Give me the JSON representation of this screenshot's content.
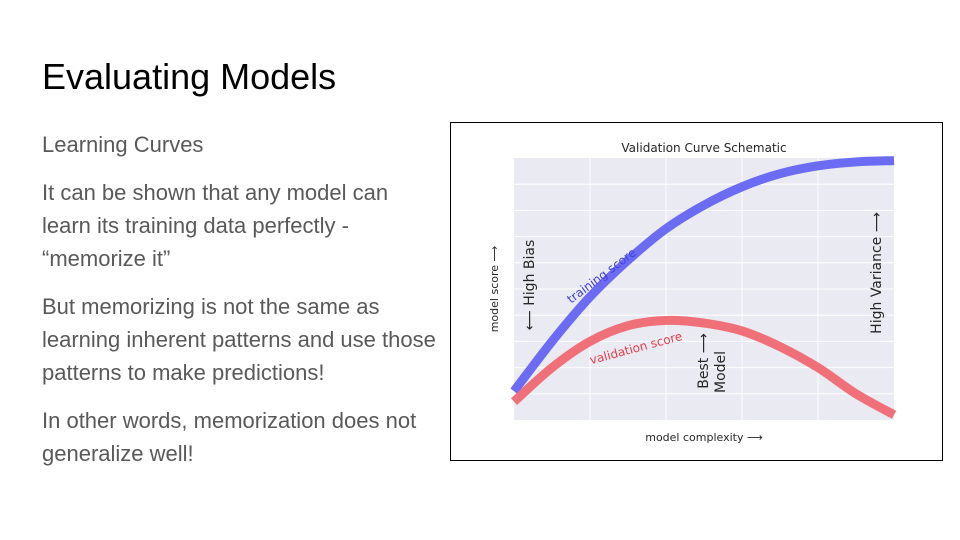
{
  "slide": {
    "title": "Evaluating Models",
    "paragraphs": [
      "Learning Curves",
      "It can be shown that any model can learn its training data perfectly - “memorize it”",
      "But memorizing is not the same as learning inherent patterns and use those patterns to make predictions!",
      "In other words, memorization does not generalize well!"
    ]
  },
  "chart_data": {
    "type": "line",
    "title": "Validation Curve Schematic",
    "xlabel": "model complexity ⟶",
    "ylabel": "model score ⟶",
    "xlim": [
      0,
      1
    ],
    "ylim": [
      0,
      1
    ],
    "grid": true,
    "background": "#EAEAF2",
    "series": [
      {
        "name": "training score",
        "color": "#6B6BF4",
        "x": [
          0.0,
          0.1,
          0.2,
          0.3,
          0.4,
          0.5,
          0.6,
          0.7,
          0.8,
          0.9,
          1.0
        ],
        "y": [
          0.11,
          0.3,
          0.47,
          0.61,
          0.73,
          0.82,
          0.89,
          0.94,
          0.97,
          0.985,
          0.99
        ]
      },
      {
        "name": "validation score",
        "color": "#F0707A",
        "x": [
          0.0,
          0.1,
          0.2,
          0.3,
          0.4,
          0.5,
          0.6,
          0.7,
          0.8,
          0.9,
          1.0
        ],
        "y": [
          0.07,
          0.2,
          0.3,
          0.36,
          0.38,
          0.37,
          0.34,
          0.28,
          0.2,
          0.1,
          0.02
        ]
      }
    ],
    "annotations": [
      {
        "text": "⟵ High Bias"
      },
      {
        "text": "High Variance ⟶"
      },
      {
        "text": "Best ⟶"
      },
      {
        "text": "Model"
      }
    ]
  }
}
